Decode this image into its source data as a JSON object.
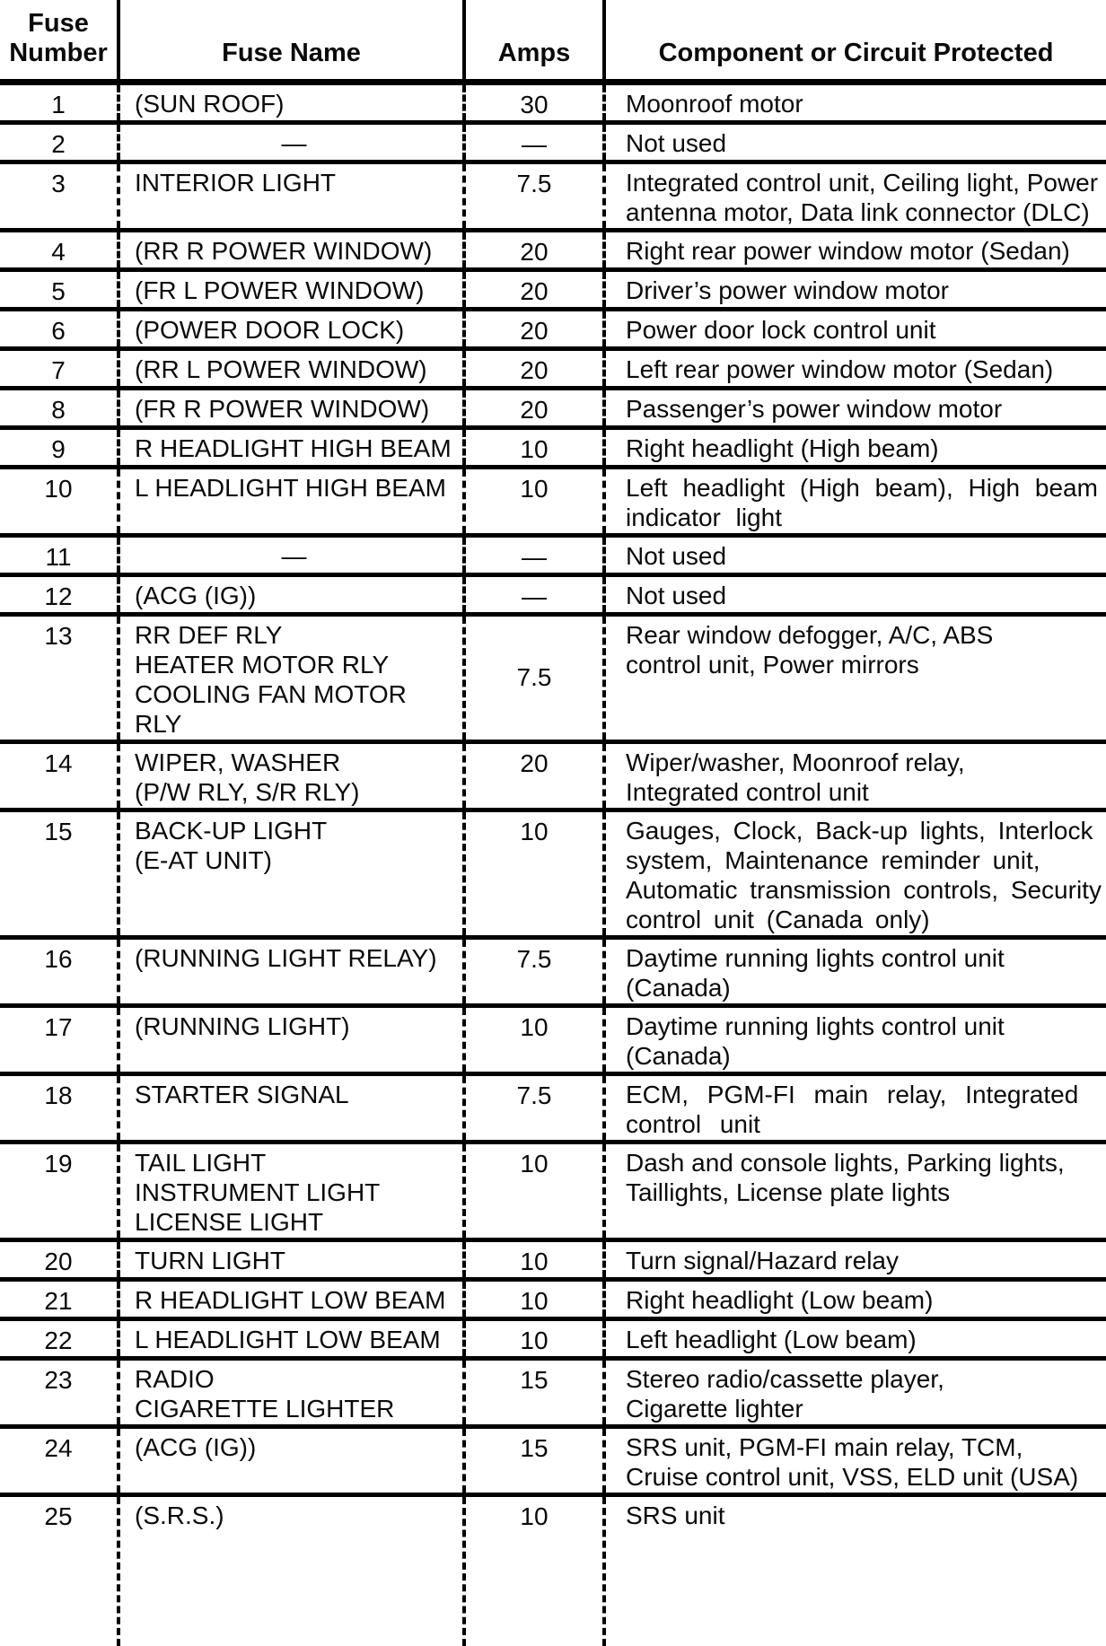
{
  "table": {
    "headers": {
      "fuse_number": "Fuse\nNumber",
      "fuse_name": "Fuse Name",
      "amps": "Amps",
      "component": "Component or Circuit Protected"
    },
    "rows": [
      {
        "num": "1",
        "name": "(SUN ROOF)",
        "amps": "30",
        "component": "Moonroof motor"
      },
      {
        "num": "2",
        "name": "—",
        "amps": "—",
        "component": "Not used"
      },
      {
        "num": "3",
        "name": "INTERIOR LIGHT",
        "amps": "7.5",
        "component": "Integrated control unit, Ceiling light, Power\nantenna motor, Data link connector (DLC)"
      },
      {
        "num": "4",
        "name": "(RR R POWER WINDOW)",
        "amps": "20",
        "component": "Right rear power window motor (Sedan)"
      },
      {
        "num": "5",
        "name": "(FR L POWER WINDOW)",
        "amps": "20",
        "component": "Driver’s power window motor"
      },
      {
        "num": "6",
        "name": "(POWER DOOR LOCK)",
        "amps": "20",
        "component": "Power door lock control unit"
      },
      {
        "num": "7",
        "name": "(RR L POWER WINDOW)",
        "amps": "20",
        "component": "Left rear power window motor (Sedan)"
      },
      {
        "num": "8",
        "name": "(FR R POWER WINDOW)",
        "amps": "20",
        "component": "Passenger’s power window motor"
      },
      {
        "num": "9",
        "name": "R HEADLIGHT HIGH BEAM",
        "amps": "10",
        "component": "Right headlight (High beam)"
      },
      {
        "num": "10",
        "name": "L HEADLIGHT HIGH BEAM",
        "amps": "10",
        "component": "Left headlight (High beam), High beam\nindicator light"
      },
      {
        "num": "11",
        "name": "—",
        "amps": "—",
        "component": "Not used"
      },
      {
        "num": "12",
        "name": "(ACG (IG))",
        "amps": "—",
        "component": "Not used"
      },
      {
        "num": "13",
        "name": "RR DEF RLY\nHEATER MOTOR RLY\nCOOLING FAN MOTOR RLY",
        "amps": "7.5",
        "component": "Rear window defogger, A/C, ABS\ncontrol unit, Power mirrors"
      },
      {
        "num": "14",
        "name": "WIPER, WASHER\n(P/W RLY, S/R RLY)",
        "amps": "20",
        "component": "Wiper/washer, Moonroof relay,\nIntegrated control unit"
      },
      {
        "num": "15",
        "name": "BACK-UP LIGHT\n(E-AT UNIT)",
        "amps": "10",
        "component": "Gauges, Clock, Back-up lights, Interlock\nsystem, Maintenance reminder unit,\nAutomatic transmission controls, Security\ncontrol unit (Canada only)"
      },
      {
        "num": "16",
        "name": "(RUNNING LIGHT RELAY)",
        "amps": "7.5",
        "component": "Daytime running lights control unit (Canada)"
      },
      {
        "num": "17",
        "name": "(RUNNING LIGHT)",
        "amps": "10",
        "component": "Daytime running lights control unit (Canada)"
      },
      {
        "num": "18",
        "name": "STARTER SIGNAL",
        "amps": "7.5",
        "component": "ECM, PGM-FI main relay, Integrated\ncontrol unit"
      },
      {
        "num": "19",
        "name": "TAIL LIGHT\nINSTRUMENT LIGHT\nLICENSE LIGHT",
        "amps": "10",
        "component": "Dash and console lights, Parking lights,\nTaillights, License plate lights"
      },
      {
        "num": "20",
        "name": "TURN LIGHT",
        "amps": "10",
        "component": "Turn signal/Hazard relay"
      },
      {
        "num": "21",
        "name": "R HEADLIGHT LOW BEAM",
        "amps": "10",
        "component": "Right headlight (Low beam)"
      },
      {
        "num": "22",
        "name": "L HEADLIGHT LOW BEAM",
        "amps": "10",
        "component": "Left headlight (Low beam)"
      },
      {
        "num": "23",
        "name": "RADIO\nCIGARETTE LIGHTER",
        "amps": "15",
        "component": "Stereo radio/cassette player,\nCigarette lighter"
      },
      {
        "num": "24",
        "name": "(ACG (IG))",
        "amps": "15",
        "component": "SRS unit, PGM-FI main relay, TCM,\nCruise control unit, VSS, ELD unit (USA)"
      },
      {
        "num": "25",
        "name": "(S.R.S.)",
        "amps": "10",
        "component": "SRS unit"
      }
    ]
  }
}
